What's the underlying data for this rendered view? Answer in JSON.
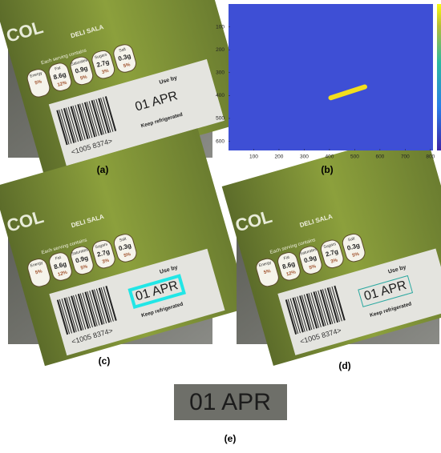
{
  "panels": {
    "a": "(a)",
    "b": "(b)",
    "c": "(c)",
    "d": "(d)",
    "e": "(e)"
  },
  "photo": {
    "brand": "COL",
    "product": "DELI SALA",
    "serving": "Each serving contains",
    "nutrients": [
      [
        "Energy",
        "5%"
      ],
      [
        "Fat",
        "8.6g",
        "12%"
      ],
      [
        "Saturates",
        "0.9g",
        "5%"
      ],
      [
        "Sugars",
        "2.7g",
        "3%"
      ],
      [
        "Salt",
        "0.3g",
        "5%"
      ]
    ],
    "use_by": "Use by",
    "date": "01 APR",
    "keep": "Keep refrigerated",
    "barcode": "<1005 8374>"
  },
  "crop": {
    "text": "01 APR"
  },
  "chart_data": {
    "type": "heatmap",
    "xlim": [
      0,
      810
    ],
    "ylim": [
      0,
      640
    ],
    "xticks": [
      100,
      200,
      300,
      400,
      500,
      600,
      700,
      800
    ],
    "yticks": [
      100,
      200,
      300,
      400,
      500,
      600
    ],
    "background_color": "#3e4fd5",
    "mask_color": "#f2de1e",
    "mask_segment": {
      "x": [
        405,
        540
      ],
      "y": [
        410,
        362
      ]
    }
  }
}
